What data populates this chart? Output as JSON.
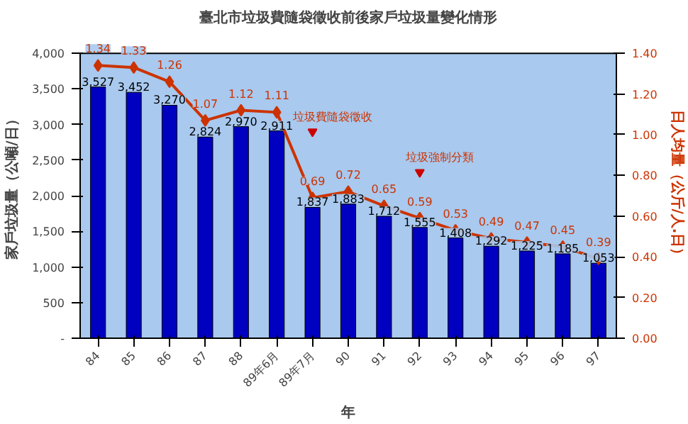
{
  "chart_data": {
    "type": "bar",
    "title": "臺北市垃圾費隨袋徵收前後家戶垃圾量變化情形",
    "xlabel": "年",
    "ylabel": "家戶垃圾量（公噸/日）",
    "y2label": "日人均量（公斤/人.日）",
    "categories": [
      "84",
      "85",
      "86",
      "87",
      "88",
      "89年6月",
      "89年7月",
      "90",
      "91",
      "92",
      "93",
      "94",
      "95",
      "96",
      "97"
    ],
    "series": [
      {
        "color": "#0000c0",
        "values": [
          3527,
          3452,
          3270,
          2824,
          2970,
          2911,
          1837,
          1883,
          1712,
          1555,
          1408,
          1292,
          1225,
          1185,
          1053
        ],
        "value_labels": [
          "3,527",
          "3,452",
          "3,270",
          "2,824",
          "2,970",
          "2,911",
          "1,837",
          "1,883",
          "1,712",
          "1,555",
          "1,408",
          "1,292",
          "1,225",
          "1,185",
          "1,053"
        ]
      },
      {
        "type": "line",
        "axis": "y2",
        "color": "#cc3300",
        "marker": "diamond",
        "values": [
          1.34,
          1.33,
          1.26,
          1.07,
          1.12,
          1.11,
          0.69,
          0.72,
          0.65,
          0.59,
          0.53,
          0.49,
          0.47,
          0.45,
          0.39
        ],
        "value_labels": [
          "1.34",
          "1.33",
          "1.26",
          "1.07",
          "1.12",
          "1.11",
          "0.69",
          "0.72",
          "0.65",
          "0.59",
          "0.53",
          "0.49",
          "0.47",
          "0.45",
          "0.39"
        ]
      }
    ],
    "ylim": [
      0,
      4000
    ],
    "yticks": [
      {
        "value": 0,
        "label": "-"
      },
      {
        "value": 500,
        "label": "500"
      },
      {
        "value": 1000,
        "label": "1,000"
      },
      {
        "value": 1500,
        "label": "1,500"
      },
      {
        "value": 2000,
        "label": "2,000"
      },
      {
        "value": 2500,
        "label": "2,500"
      },
      {
        "value": 3000,
        "label": "3,000"
      },
      {
        "value": 3500,
        "label": "3,500"
      },
      {
        "value": 4000,
        "label": "4,000"
      }
    ],
    "y2lim": [
      0,
      1.4
    ],
    "y2ticks": [
      "0.00",
      "0.20",
      "0.40",
      "0.60",
      "0.80",
      "1.00",
      "1.20",
      "1.40"
    ],
    "annotations": [
      {
        "text": "垃圾費隨袋徵收",
        "x": "89年7月",
        "y": 2900
      },
      {
        "text": "垃圾強制分類",
        "x": "92",
        "y": 2330
      }
    ],
    "grid": false,
    "legend": false
  }
}
